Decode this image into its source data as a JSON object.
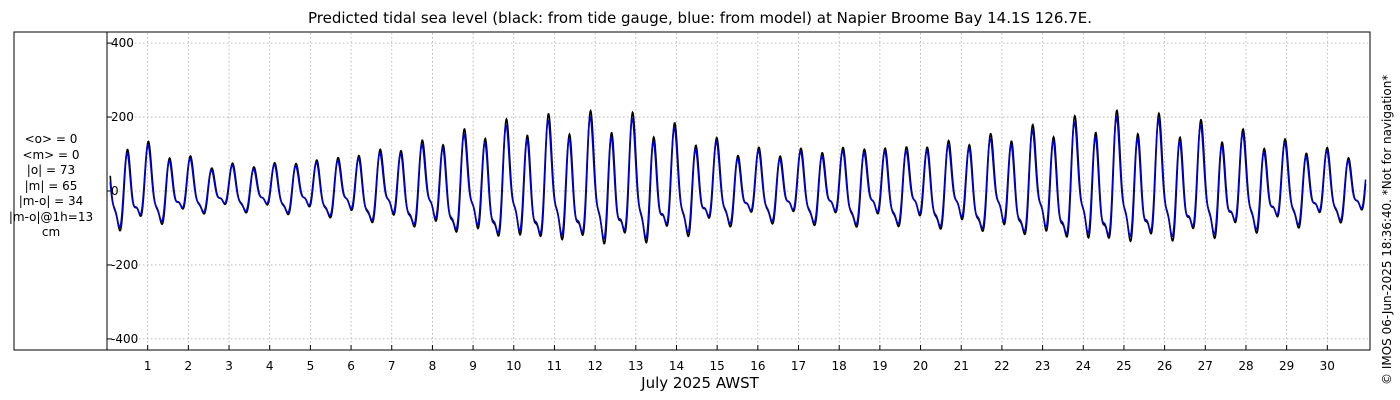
{
  "chart_data": {
    "type": "line",
    "title": "Predicted tidal sea level (black: from tide gauge, blue: from model) at Napier Broome Bay 14.1S 126.7E.",
    "xlabel": "July 2025 AWST",
    "ylabel": "",
    "ylim": [
      -430,
      430
    ],
    "xlim": [
      0.0,
      31.0
    ],
    "grid": true,
    "y_ticks": [
      -400,
      -200,
      0,
      200,
      400
    ],
    "x_ticks": [
      1,
      2,
      3,
      4,
      5,
      6,
      7,
      8,
      9,
      10,
      11,
      12,
      13,
      14,
      15,
      16,
      17,
      18,
      19,
      20,
      21,
      22,
      23,
      24,
      25,
      26,
      27,
      28,
      29,
      30
    ],
    "x_unit": "day of month",
    "y_unit": "cm",
    "series": [
      {
        "name": "tide gauge",
        "color": "#000000"
      },
      {
        "name": "model",
        "color": "#0000cc"
      }
    ],
    "high_tide_peaks_cm": {
      "days": [
        0.5,
        1.5,
        2.5,
        3.5,
        4.5,
        5.5,
        6.5,
        7.5,
        8.5,
        9.5,
        10.5,
        11.5,
        12.5,
        13.5,
        14.5,
        15.5,
        16.5,
        17.5,
        18.5,
        19.5,
        20.5,
        21.5,
        22.5,
        23.5,
        24.5,
        25.5,
        26.5,
        27.5,
        28.5,
        29.5,
        30.5
      ],
      "values": [
        115,
        90,
        60,
        60,
        65,
        75,
        90,
        105,
        125,
        145,
        155,
        160,
        165,
        150,
        125,
        95,
        90,
        95,
        100,
        100,
        110,
        120,
        135,
        150,
        165,
        160,
        150,
        135,
        115,
        100,
        85
      ]
    }
  },
  "stats": {
    "lines": [
      "<o> = 0",
      "<m> = 0",
      "|o| = 73",
      "|m| = 65",
      "|m-o| = 34",
      "|m-o|@1h=13",
      "cm"
    ]
  },
  "side_note": "© IMOS 06-Jun-2025 18:36:40. *Not for navigation*",
  "colors": {
    "gauge": "#000000",
    "model": "#0000cc",
    "grid": "#aaaaaa"
  }
}
